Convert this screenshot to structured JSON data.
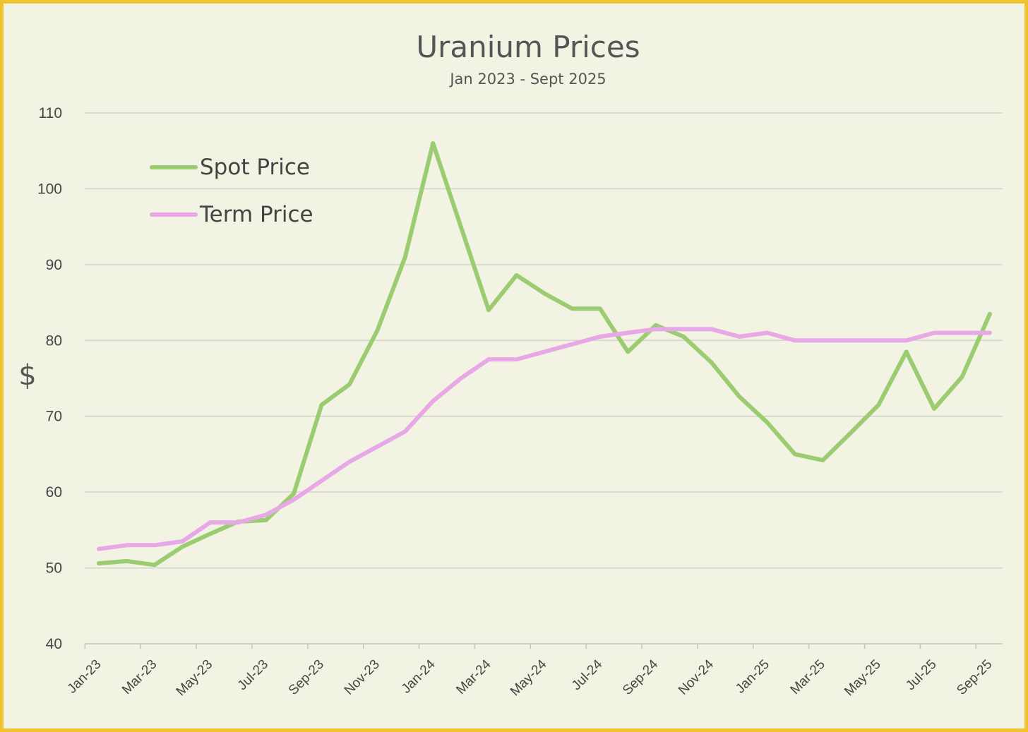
{
  "chart_data": {
    "type": "line",
    "title": "Uranium Prices",
    "subtitle": "Jan 2023 - Sept 2025",
    "ylabel": "$",
    "xlabel": "",
    "ylim": [
      40,
      110
    ],
    "yticks": [
      40,
      50,
      60,
      70,
      80,
      90,
      100,
      110
    ],
    "grid": true,
    "legend_position": "top-left",
    "x": [
      "Jan-23",
      "Feb-23",
      "Mar-23",
      "Apr-23",
      "May-23",
      "Jun-23",
      "Jul-23",
      "Aug-23",
      "Sep-23",
      "Oct-23",
      "Nov-23",
      "Dec-23",
      "Jan-24",
      "Feb-24",
      "Mar-24",
      "Apr-24",
      "May-24",
      "Jun-24",
      "Jul-24",
      "Aug-24",
      "Sep-24",
      "Oct-24",
      "Nov-24",
      "Dec-24",
      "Jan-25",
      "Feb-25",
      "Mar-25",
      "Apr-25",
      "May-25",
      "Jun-25",
      "Jul-25",
      "Aug-25",
      "Sep-25"
    ],
    "xtick_labels": [
      "Jan-23",
      "Mar-23",
      "May-23",
      "Jul-23",
      "Sep-23",
      "Nov-23",
      "Jan-24",
      "Mar-24",
      "May-24",
      "Jul-24",
      "Sep-24",
      "Nov-24",
      "Jan-25",
      "Mar-25",
      "May-25",
      "Jul-25",
      "Sep-25"
    ],
    "series": [
      {
        "name": "Spot Price",
        "color": "#9ccc72",
        "values": [
          50.6,
          50.9,
          50.4,
          52.8,
          54.5,
          56.1,
          56.3,
          59.8,
          71.5,
          74.2,
          81.3,
          91.0,
          106.0,
          95.0,
          84.0,
          88.6,
          86.2,
          84.2,
          84.2,
          78.5,
          82.0,
          80.5,
          77.1,
          72.6,
          69.2,
          65.0,
          64.2,
          67.8,
          71.5,
          78.5,
          71.0,
          75.2,
          83.5
        ]
      },
      {
        "name": "Term Price",
        "color": "#e8a8e8",
        "values": [
          52.5,
          53.0,
          53.0,
          53.5,
          56.0,
          56.0,
          57.0,
          59.0,
          61.5,
          64.0,
          66.0,
          68.0,
          72.0,
          75.0,
          77.5,
          77.5,
          78.5,
          79.5,
          80.5,
          81.0,
          81.5,
          81.5,
          81.5,
          80.5,
          81.0,
          80.0,
          80.0,
          80.0,
          80.0,
          80.0,
          81.0,
          81.0,
          81.0
        ]
      }
    ]
  }
}
